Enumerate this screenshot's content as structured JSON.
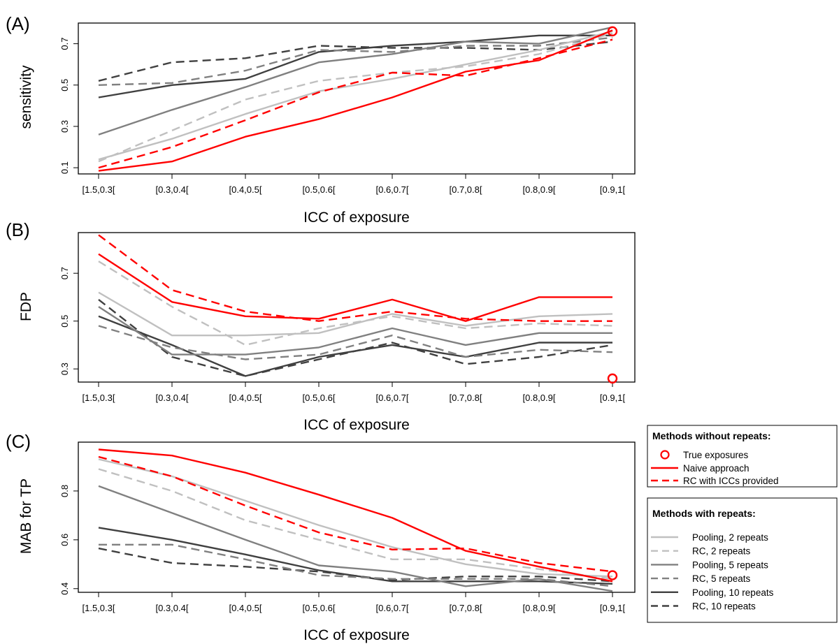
{
  "chart_data": [
    {
      "type": "line",
      "panel_label": "(A)",
      "xlabel": "ICC of exposure",
      "ylabel": "sensitivity",
      "categories": [
        "[1.5,0.3[",
        "[0.3,0.4[",
        "[0.4,0.5[",
        "[0.5,0.6[",
        "[0.6,0.7[",
        "[0.7,0.8[",
        "[0.8,0.9[",
        "[0.9,1["
      ],
      "ylim": [
        0.07,
        0.8
      ],
      "yticks": [
        0.1,
        0.3,
        0.5,
        0.7
      ],
      "ytick_labels": [
        "0.1",
        "0.3",
        "0.5",
        "0.7"
      ],
      "true_exposure_marker": {
        "category": "[0.9,1[",
        "value": 0.76
      },
      "series": [
        {
          "name": "Naive approach",
          "values": [
            0.085,
            0.13,
            0.25,
            0.335,
            0.44,
            0.565,
            0.62,
            0.765
          ]
        },
        {
          "name": "RC with ICCs provided",
          "values": [
            0.1,
            0.2,
            0.33,
            0.465,
            0.56,
            0.545,
            0.63,
            0.72
          ]
        },
        {
          "name": "Pooling, 2 repeats",
          "values": [
            0.14,
            0.24,
            0.36,
            0.47,
            0.53,
            0.6,
            0.67,
            0.76
          ]
        },
        {
          "name": "RC, 2 repeats",
          "values": [
            0.13,
            0.28,
            0.43,
            0.52,
            0.56,
            0.59,
            0.65,
            0.75
          ]
        },
        {
          "name": "Pooling, 5 repeats",
          "values": [
            0.26,
            0.38,
            0.49,
            0.61,
            0.65,
            0.71,
            0.7,
            0.78
          ]
        },
        {
          "name": "RC, 5 repeats",
          "values": [
            0.5,
            0.51,
            0.57,
            0.67,
            0.66,
            0.69,
            0.69,
            0.73
          ]
        },
        {
          "name": "Pooling, 10 repeats",
          "values": [
            0.44,
            0.5,
            0.53,
            0.66,
            0.69,
            0.71,
            0.74,
            0.74
          ]
        },
        {
          "name": "RC, 10 repeats",
          "values": [
            0.52,
            0.61,
            0.63,
            0.69,
            0.68,
            0.68,
            0.67,
            0.71
          ]
        }
      ]
    },
    {
      "type": "line",
      "panel_label": "(B)",
      "xlabel": "ICC of exposure",
      "ylabel": "FDP",
      "categories": [
        "[1.5,0.3[",
        "[0.3,0.4[",
        "[0.4,0.5[",
        "[0.5,0.6[",
        "[0.6,0.7[",
        "[0.7,0.8[",
        "[0.8,0.9[",
        "[0.9,1["
      ],
      "ylim": [
        0.245,
        0.87
      ],
      "yticks": [
        0.3,
        0.5,
        0.7
      ],
      "ytick_labels": [
        "0.3",
        "0.5",
        "0.7"
      ],
      "true_exposure_marker": {
        "category": "[0.9,1[",
        "value": 0.26
      },
      "series": [
        {
          "name": "Naive approach",
          "values": [
            0.78,
            0.58,
            0.52,
            0.51,
            0.59,
            0.5,
            0.6,
            0.6
          ]
        },
        {
          "name": "RC with ICCs provided",
          "values": [
            0.86,
            0.63,
            0.54,
            0.5,
            0.54,
            0.51,
            0.5,
            0.5
          ]
        },
        {
          "name": "Pooling, 2 repeats",
          "values": [
            0.62,
            0.44,
            0.44,
            0.45,
            0.53,
            0.48,
            0.52,
            0.53
          ]
        },
        {
          "name": "RC, 2 repeats",
          "values": [
            0.75,
            0.56,
            0.4,
            0.47,
            0.52,
            0.47,
            0.49,
            0.48
          ]
        },
        {
          "name": "Pooling, 5 repeats",
          "values": [
            0.56,
            0.36,
            0.36,
            0.39,
            0.47,
            0.4,
            0.45,
            0.45
          ]
        },
        {
          "name": "RC, 5 repeats",
          "values": [
            0.48,
            0.39,
            0.34,
            0.36,
            0.44,
            0.35,
            0.38,
            0.37
          ]
        },
        {
          "name": "Pooling, 10 repeats",
          "values": [
            0.52,
            0.4,
            0.27,
            0.35,
            0.4,
            0.35,
            0.41,
            0.41
          ]
        },
        {
          "name": "RC, 10 repeats",
          "values": [
            0.59,
            0.35,
            0.27,
            0.34,
            0.41,
            0.32,
            0.35,
            0.4
          ]
        }
      ]
    },
    {
      "type": "line",
      "panel_label": "(C)",
      "xlabel": "ICC of exposure",
      "ylabel": "MAB for TP",
      "categories": [
        "[1.5,0.3[",
        "[0.3,0.4[",
        "[0.4,0.5[",
        "[0.5,0.6[",
        "[0.6,0.7[",
        "[0.7,0.8[",
        "[0.8,0.9[",
        "[0.9,1["
      ],
      "ylim": [
        0.385,
        1.0
      ],
      "yticks": [
        0.4,
        0.6,
        0.8
      ],
      "ytick_labels": [
        "0.4",
        "0.6",
        "0.8"
      ],
      "true_exposure_marker": {
        "category": "[0.9,1[",
        "value": 0.455
      },
      "series": [
        {
          "name": "Naive approach",
          "values": [
            0.97,
            0.945,
            0.875,
            0.785,
            0.69,
            0.555,
            0.49,
            0.43
          ]
        },
        {
          "name": "RC with ICCs provided",
          "values": [
            0.94,
            0.86,
            0.74,
            0.63,
            0.56,
            0.565,
            0.505,
            0.47
          ]
        },
        {
          "name": "Pooling, 2 repeats",
          "values": [
            0.93,
            0.86,
            0.76,
            0.66,
            0.57,
            0.5,
            0.46,
            0.45
          ]
        },
        {
          "name": "RC, 2 repeats",
          "values": [
            0.89,
            0.8,
            0.68,
            0.6,
            0.52,
            0.52,
            0.48,
            0.44
          ]
        },
        {
          "name": "Pooling, 5 repeats",
          "values": [
            0.82,
            0.71,
            0.6,
            0.495,
            0.47,
            0.41,
            0.44,
            0.39
          ]
        },
        {
          "name": "RC, 5 repeats",
          "values": [
            0.58,
            0.58,
            0.52,
            0.455,
            0.44,
            0.44,
            0.44,
            0.41
          ]
        },
        {
          "name": "Pooling, 10 repeats",
          "values": [
            0.65,
            0.6,
            0.54,
            0.475,
            0.43,
            0.43,
            0.43,
            0.42
          ]
        },
        {
          "name": "RC, 10 repeats",
          "values": [
            0.565,
            0.505,
            0.49,
            0.47,
            0.435,
            0.45,
            0.45,
            0.43
          ]
        }
      ]
    }
  ],
  "series_styles": {
    "Naive approach": {
      "color": "#ff0000",
      "dash": "solid"
    },
    "RC with ICCs provided": {
      "color": "#ff0000",
      "dash": "dashed"
    },
    "Pooling, 2 repeats": {
      "color": "#c0c0c0",
      "dash": "solid"
    },
    "RC, 2 repeats": {
      "color": "#c0c0c0",
      "dash": "dashed"
    },
    "Pooling, 5 repeats": {
      "color": "#808080",
      "dash": "solid"
    },
    "RC, 5 repeats": {
      "color": "#808080",
      "dash": "dashed"
    },
    "Pooling, 10 repeats": {
      "color": "#404040",
      "dash": "solid"
    },
    "RC, 10 repeats": {
      "color": "#404040",
      "dash": "dashed"
    }
  },
  "legend": {
    "without_repeats": {
      "title": "Methods without repeats:",
      "items": [
        "True exposures",
        "Naive approach",
        "RC with ICCs provided"
      ]
    },
    "with_repeats": {
      "title": "Methods with repeats:",
      "items": [
        "Pooling, 2 repeats",
        "RC, 2 repeats",
        "Pooling, 5 repeats",
        "RC, 5 repeats",
        "Pooling, 10 repeats",
        "RC, 10 repeats"
      ]
    }
  },
  "marker_color": "#ff0000"
}
